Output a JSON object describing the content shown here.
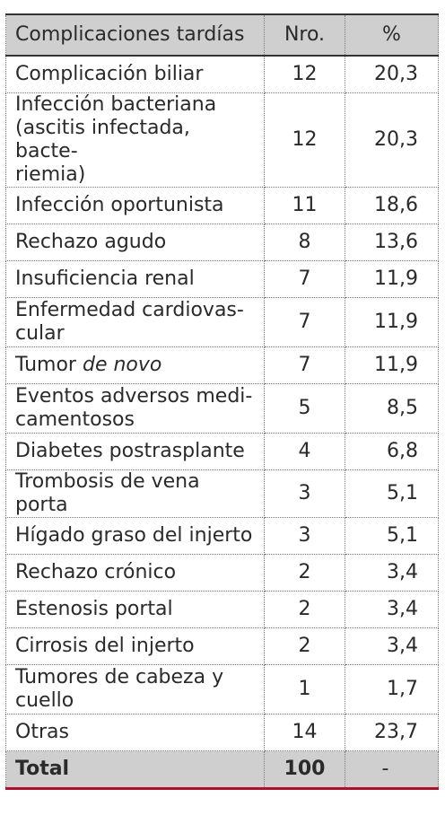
{
  "table": {
    "headers": [
      "Complicaciones tardías",
      "Nro.",
      "%"
    ],
    "rows": [
      {
        "label": "Complicación biliar",
        "n": "12",
        "pct": "20,3"
      },
      {
        "label_lines": [
          "Infección bacteriana",
          "(ascitis infectada, bacte-",
          "riemia)"
        ],
        "n": "12",
        "pct": "20,3"
      },
      {
        "label": "Infección oportunista",
        "n": "11",
        "pct": "18,6"
      },
      {
        "label": "Rechazo agudo",
        "n": "8",
        "pct": "13,6"
      },
      {
        "label": "Insuficiencia renal",
        "n": "7",
        "pct": "11,9"
      },
      {
        "label_lines": [
          "Enfermedad cardiovas-",
          "cular"
        ],
        "n": "7",
        "pct": "11,9"
      },
      {
        "label_plain": "Tumor",
        "label_em": "de novo",
        "n": "7",
        "pct": "11,9"
      },
      {
        "label_lines": [
          "Eventos adversos medi-",
          "camentosos"
        ],
        "n": "5",
        "pct": "8,5"
      },
      {
        "label": "Diabetes postrasplante",
        "n": "4",
        "pct": "6,8"
      },
      {
        "label": "Trombosis de vena porta",
        "n": "3",
        "pct": "5,1"
      },
      {
        "label": "Hígado graso del injerto",
        "n": "3",
        "pct": "5,1"
      },
      {
        "label": "Rechazo crónico",
        "n": "2",
        "pct": "3,4"
      },
      {
        "label": "Estenosis portal",
        "n": "2",
        "pct": "3,4"
      },
      {
        "label": "Cirrosis del injerto",
        "n": "2",
        "pct": "3,4"
      },
      {
        "label_lines": [
          "Tumores de cabeza y",
          "cuello"
        ],
        "n": "1",
        "pct": "1,7"
      },
      {
        "label": "Otras",
        "n": "14",
        "pct": "23,7"
      }
    ],
    "total": {
      "label": "Total",
      "n": "100",
      "pct": "-"
    }
  }
}
